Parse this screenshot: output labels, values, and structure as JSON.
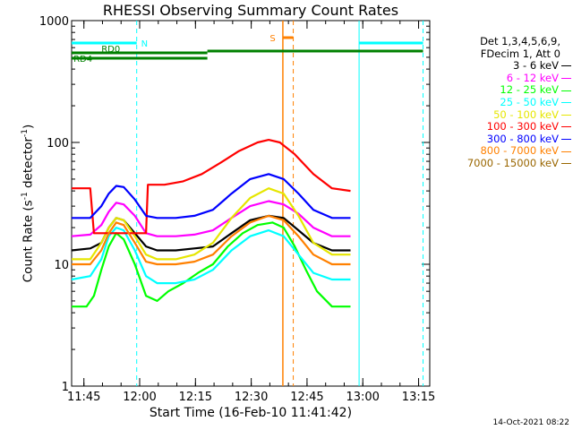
{
  "chart_data": {
    "type": "line",
    "title": "RHESSI Observing Summary Count Rates",
    "xlabel": "Start Time (16-Feb-10 11:41:42)",
    "ylabel_main": "Count Rate (s",
    "ylabel_sup": "-1",
    "ylabel_end": " detector",
    "ylabel_sup2": "-1",
    "ylabel_close": ")",
    "y_scale": "log",
    "ylim": [
      1,
      1000
    ],
    "x_range_minutes": [
      "11:41:42",
      "13:18:00"
    ],
    "x_ticks": [
      "11:45",
      "12:00",
      "12:15",
      "12:30",
      "12:45",
      "13:00",
      "13:15"
    ],
    "y_ticks": [
      "1",
      "10",
      "100",
      "1000"
    ],
    "legend_header": [
      "Det 1,3,4,5,6,9,",
      "FDecim 1, Att 0"
    ],
    "series": [
      {
        "name": "3 - 6 keV",
        "color": "#000000",
        "values": [
          [
            0,
            13
          ],
          [
            5,
            13.5
          ],
          [
            8,
            15
          ],
          [
            10,
            20
          ],
          [
            12,
            24
          ],
          [
            14,
            23
          ],
          [
            17,
            18
          ],
          [
            20,
            14
          ],
          [
            23,
            13
          ],
          [
            28,
            13
          ],
          [
            33,
            13.5
          ],
          [
            38,
            14
          ],
          [
            43,
            18
          ],
          [
            48,
            23
          ],
          [
            53,
            25
          ],
          [
            57,
            24
          ],
          [
            61,
            19
          ],
          [
            65,
            15
          ],
          [
            70,
            13
          ],
          [
            75,
            13
          ]
        ]
      },
      {
        "name": "6 - 12 keV",
        "color": "#ff00ff",
        "values": [
          [
            0,
            17
          ],
          [
            5,
            17.5
          ],
          [
            8,
            21
          ],
          [
            10,
            27
          ],
          [
            12,
            32
          ],
          [
            14,
            31
          ],
          [
            17,
            25
          ],
          [
            20,
            18
          ],
          [
            23,
            17
          ],
          [
            28,
            17
          ],
          [
            33,
            17.5
          ],
          [
            38,
            19
          ],
          [
            43,
            24
          ],
          [
            48,
            30
          ],
          [
            53,
            33
          ],
          [
            57,
            31
          ],
          [
            61,
            26
          ],
          [
            65,
            20
          ],
          [
            70,
            17
          ],
          [
            75,
            17
          ]
        ]
      },
      {
        "name": "12 - 25 keV",
        "color": "#00ff00",
        "values": [
          [
            0,
            4.5
          ],
          [
            4,
            4.5
          ],
          [
            6,
            5.5
          ],
          [
            8,
            9
          ],
          [
            10,
            14
          ],
          [
            12,
            18
          ],
          [
            14,
            16
          ],
          [
            17,
            10
          ],
          [
            20,
            5.5
          ],
          [
            23,
            5
          ],
          [
            26,
            6
          ],
          [
            30,
            7
          ],
          [
            34,
            8.5
          ],
          [
            38,
            10
          ],
          [
            42,
            14
          ],
          [
            46,
            18
          ],
          [
            50,
            21
          ],
          [
            54,
            22
          ],
          [
            57,
            20
          ],
          [
            60,
            14
          ],
          [
            63,
            9
          ],
          [
            66,
            6
          ],
          [
            70,
            4.5
          ],
          [
            75,
            4.5
          ]
        ]
      },
      {
        "name": "25 - 50 keV",
        "color": "#00ffff",
        "values": [
          [
            0,
            7.5
          ],
          [
            5,
            8
          ],
          [
            8,
            11
          ],
          [
            10,
            17
          ],
          [
            12,
            20
          ],
          [
            14,
            19
          ],
          [
            17,
            13
          ],
          [
            20,
            8
          ],
          [
            23,
            7
          ],
          [
            28,
            7
          ],
          [
            33,
            7.5
          ],
          [
            38,
            9
          ],
          [
            43,
            13
          ],
          [
            48,
            17
          ],
          [
            53,
            19
          ],
          [
            57,
            17
          ],
          [
            61,
            12
          ],
          [
            65,
            8.5
          ],
          [
            70,
            7.5
          ],
          [
            75,
            7.5
          ]
        ]
      },
      {
        "name": "50 - 100 keV",
        "color": "#e6e600",
        "values": [
          [
            0,
            11
          ],
          [
            5,
            11
          ],
          [
            8,
            15
          ],
          [
            10,
            20
          ],
          [
            12,
            24
          ],
          [
            14,
            23
          ],
          [
            17,
            17
          ],
          [
            20,
            12
          ],
          [
            23,
            11
          ],
          [
            28,
            11
          ],
          [
            33,
            12
          ],
          [
            38,
            15
          ],
          [
            43,
            24
          ],
          [
            48,
            35
          ],
          [
            53,
            42
          ],
          [
            57,
            38
          ],
          [
            61,
            25
          ],
          [
            65,
            15
          ],
          [
            70,
            12
          ],
          [
            75,
            12
          ]
        ]
      },
      {
        "name": "100 - 300 keV",
        "color": "#ff0000",
        "values": [
          [
            0,
            42
          ],
          [
            5,
            42
          ],
          [
            6,
            18
          ],
          [
            20,
            18
          ],
          [
            20.5,
            45
          ],
          [
            25,
            45
          ],
          [
            30,
            48
          ],
          [
            35,
            55
          ],
          [
            40,
            68
          ],
          [
            45,
            85
          ],
          [
            50,
            100
          ],
          [
            53,
            105
          ],
          [
            56,
            100
          ],
          [
            60,
            80
          ],
          [
            65,
            55
          ],
          [
            70,
            42
          ],
          [
            75,
            40
          ]
        ]
      },
      {
        "name": "300 - 800 keV",
        "color": "#0000ff",
        "values": [
          [
            0,
            24
          ],
          [
            5,
            24
          ],
          [
            8,
            30
          ],
          [
            10,
            38
          ],
          [
            12,
            44
          ],
          [
            14,
            43
          ],
          [
            17,
            34
          ],
          [
            20,
            25
          ],
          [
            23,
            24
          ],
          [
            28,
            24
          ],
          [
            33,
            25
          ],
          [
            38,
            28
          ],
          [
            43,
            38
          ],
          [
            48,
            50
          ],
          [
            53,
            55
          ],
          [
            57,
            50
          ],
          [
            61,
            38
          ],
          [
            65,
            28
          ],
          [
            70,
            24
          ],
          [
            75,
            24
          ]
        ]
      },
      {
        "name": "800 - 7000 keV",
        "color": "#ff8000",
        "values": [
          [
            0,
            10
          ],
          [
            5,
            10
          ],
          [
            8,
            13
          ],
          [
            10,
            18
          ],
          [
            12,
            22
          ],
          [
            14,
            21
          ],
          [
            17,
            15
          ],
          [
            20,
            10.5
          ],
          [
            23,
            10
          ],
          [
            28,
            10
          ],
          [
            33,
            10.5
          ],
          [
            38,
            12
          ],
          [
            43,
            17
          ],
          [
            48,
            22
          ],
          [
            53,
            25
          ],
          [
            57,
            23
          ],
          [
            61,
            17
          ],
          [
            65,
            12
          ],
          [
            70,
            10
          ],
          [
            75,
            10
          ]
        ]
      },
      {
        "name": "7000 - 15000 keV",
        "color": "#996600",
        "values": []
      }
    ],
    "annotations": {
      "attenuator_labels": [
        "RD0",
        "RD4",
        "N",
        "S"
      ],
      "flare_marker": "S"
    }
  },
  "timestamp": "14-Oct-2021 08:22"
}
